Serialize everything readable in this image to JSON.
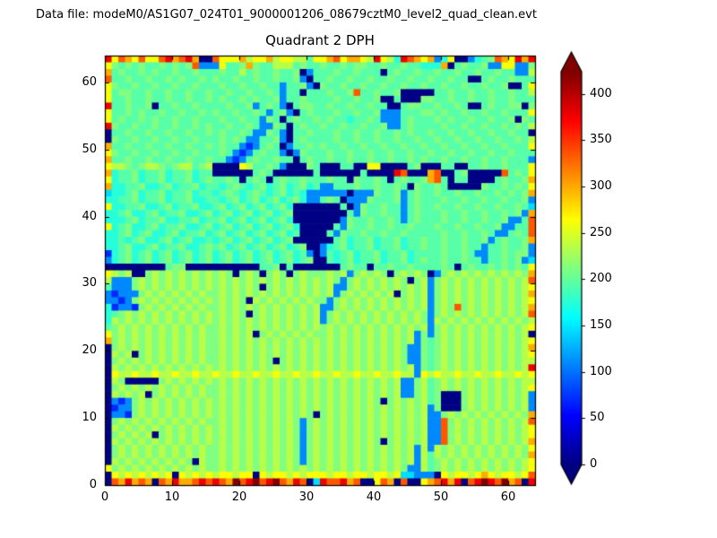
{
  "header": {
    "data_file": "Data file: modeM0/AS1G07_024T01_9000001206_08679cztM0_level2_quad_clean.evt"
  },
  "colors": {
    "background": "#ffffff",
    "axis": "#000000",
    "text": "#000000"
  },
  "chart_data": {
    "type": "heatmap",
    "title": "Quadrant 2 DPH",
    "xlabel": "",
    "ylabel": "",
    "x_range": [
      0,
      64
    ],
    "y_range": [
      0,
      64
    ],
    "x_ticks": [
      0,
      10,
      20,
      30,
      40,
      50,
      60
    ],
    "y_ticks": [
      0,
      10,
      20,
      30,
      40,
      50,
      60
    ],
    "grid_size": 64,
    "colormap": "jet",
    "vmin": 0,
    "vmax": 424,
    "colorbar": {
      "ticks": [
        0,
        50,
        100,
        150,
        200,
        250,
        300,
        350,
        400
      ],
      "extend": "both"
    },
    "value_levels": {
      "0": 2,
      "1": 70,
      "2": 110,
      "3": 145,
      "4": 175,
      "5": 195,
      "6": 212,
      "7": 235,
      "8": 262,
      "9": 300,
      "a": 335,
      "b": 378,
      "c": 424
    },
    "rows_top_to_bottom": [
      [
        "b8a98a88ab9ab900",
        "a888978897887758",
        "89a89987b874ba98",
        "9248002456a98b9b"
      ],
      [
        "8656565565656a22",
        "2855696557775655",
        "6556566556556554",
        "4490565562288226"
      ],
      [
        "9565565655655655",
        "5655756556556025",
        "5565565550565565",
        "5655655655655227"
      ],
      [
        "a556556556565565",
        "6556556556556205",
        "5655655655655655",
        "6556550056556555"
      ],
      [
        "8655655655655655",
        "5655655655255620",
        "6556556556556556",
        "5565565565560058"
      ],
      [
        "8566556556556556",
        "5565565565255055",
        "56556a5565560000",
        "0556556556556557"
      ],
      [
        "8556556556556556",
        "5655656556255655",
        "5565565560050006",
        "6556556556556555"
      ],
      [
        "b556556055655655",
        "5565562565205665",
        "5655655655005665",
        "5655650056556606"
      ],
      [
        "8556565565565565",
        "6556556525620565",
        "5565565562225556",
        "6565565565565558"
      ],
      [
        "8565565655655655",
        "5655655265056556",
        "5655455652225655",
        "5656556556556065"
      ],
      [
        "b655655655655656",
        "5565565226505655",
        "6556556556225655",
        "5565565565565657"
      ],
      [
        "0556556556556556",
        "5655652265205565",
        "5565565565565655",
        "6556556556556550"
      ],
      [
        "0655655655655655",
        "5656522556205655",
        "5565565565565565",
        "5655655655655657"
      ],
      [
        "9556556556556556",
        "5655212565025565",
        "6556556556556556",
        "5565565565565558"
      ],
      [
        "8655655655655655",
        "5652125655202655",
        "5655655655655655",
        "6556556556556555"
      ],
      [
        "9556556556556556",
        "5521256556550565",
        "5655655655655656",
        "5565565565565552"
      ],
      [
        "8776567765677567",
        "0000875565200065",
        "0005500880000560",
        "0055005565565558"
      ],
      [
        "9455645564556455",
        "0000005650000005",
        "00000050000ba000",
        "9a005600000a5658"
      ],
      [
        "8455645564556456",
        "5565056505655655",
        "5655065565056556",
        "9a50550000565569"
      ],
      [
        "9445564456455645",
        "5456545645645645",
        "2255565565565065",
        "5650000065565658"
      ],
      [
        "3445645564556455",
        "4565456545645422",
        "2222022265562565",
        "5655655655656569"
      ],
      [
        "4455645564556445",
        "5456456456456422",
        "5650222655562565",
        "5565565565565562"
      ],
      [
        "8445564456455644",
        "5645645645640000",
        "0005026556552565",
        "5655655655655653"
      ],
      [
        "4456445645564456",
        "4564564564560000",
        "0000526556552565",
        "5565565565565629"
      ],
      [
        "4445645564455645",
        "5645645645640000",
        "0002655655652565",
        "556556556556225a"
      ],
      [
        "8456445645564456",
        "4564564564564000",
        "0052655655655655",
        "565565565562255a"
      ],
      [
        "4456456445645564",
        "5645645645645000",
        "0526556556556555",
        "556556556522565a"
      ],
      [
        "4454564456456445",
        "4564564564560000",
        "0056455645564556",
        "5565565562565569"
      ],
      [
        "4456445645564456",
        "5645645645645600",
        "2456455645564556",
        "5565565525565562"
      ],
      [
        "1456456456456456",
        "4564564564564520",
        "2545645564556455",
        "5565565225565662"
      ],
      [
        "2456456456456456",
        "4564564564564560",
        "0545645564556456",
        "5565565525565623"
      ],
      [
        "0000000005660000",
        "0000000556050000",
        "0005655055655655",
        "5565056556565658"
      ],
      [
        "8767006767676767",
        "6760676067606766",
        "6767267676067676",
        "0267676767676769"
      ],
      [
        "7222676767676767",
        "6767676767676767",
        "6762676767676067",
        "267676767676767a"
      ],
      [
        "5222676767676767",
        "6767676067676767",
        "6722676767676767",
        "2676767676767678"
      ],
      [
        "2122267676767676",
        "6767676767676767",
        "6726767676706767",
        "2676767676767679"
      ],
      [
        "2212676767676767",
        "6767607676767676",
        "6267676767676767",
        "2676767676767678"
      ],
      [
        "4122167676767676",
        "6767676767676767",
        "2267676767676767",
        "2676a67676767679"
      ],
      [
        "4567676767676767",
        "6767606767676767",
        "2676767676767676",
        "267676767676767a"
      ],
      [
        "4767676767676767",
        "6767676767676767",
        "2676767676767676",
        "2767676767676767"
      ],
      [
        "5676767676767676",
        "6767676767676767",
        "6767676767676767",
        "2676767676767678"
      ],
      [
        "8676767676767676",
        "6767670676767676",
        "6767676767676726",
        "2676767676767670"
      ],
      [
        "9676767676767676",
        "6767676767676767",
        "6767676767676726",
        "5676767676767678"
      ],
      [
        "0676767676767676",
        "6767676767676767",
        "6767676767676226",
        "5676767676767679"
      ],
      [
        "0767067676767676",
        "6767676767676767",
        "6767676767676226",
        "5676767676767678"
      ],
      [
        "0676767676767676",
        "6767676760676767",
        "6767676767676226",
        "5676767676767677"
      ],
      [
        "0767676767676767",
        "6767676767676767",
        "6767676767676726",
        "567676767676767b"
      ],
      [
        "0877877877877877",
        "8778778778778778",
        "7787787787787728",
        "7877877877877878"
      ],
      [
        "0760000067676767",
        "6767676767676767",
        "6767676767672267",
        "5676767676767677"
      ],
      [
        "0676767676767676",
        "6767676767676767",
        "6767676767672267",
        "5676767676767678"
      ],
      [
        "0767670676767676",
        "6767676767676767",
        "6767676767672267",
        "5600067676767672"
      ],
      [
        "0212676767676767",
        "6767676767676767",
        "6767676760676767",
        "5600067676767672"
      ],
      [
        "0122676767676767",
        "6767676767676767",
        "6767676767676767",
        "2600067676767672"
      ],
      [
        "0221676767676767",
        "6767676767676760",
        "6767676767676767",
        "2267676767676769"
      ],
      [
        "0676767676767676",
        "6767676767676267",
        "6767676767676767",
        "22a676767676767a"
      ],
      [
        "0767676767676767",
        "6767676767676267",
        "6767676767676767",
        "22a6767676767678"
      ],
      [
        "0676767067676767",
        "6767676767676267",
        "6767676767676767",
        "22a6767676767678"
      ],
      [
        "0767676767676767",
        "6767676767676267",
        "6767676760676767",
        "22a6767676767679"
      ],
      [
        "0676767676767676",
        "6767676767676267",
        "6767676767676727",
        "2767676767676768"
      ],
      [
        "0676767676767676",
        "6767676767676267",
        "6767676767676727",
        "5767676767676769"
      ],
      [
        "0767676767676076",
        "6767676767676267",
        "6767676767676727",
        "5676767676767678"
      ],
      [
        "8676767676767676",
        "6767676767676767",
        "6767676767676227",
        "5676767676767678"
      ],
      [
        "0878787878087878",
        "7887880878878788",
        "8788788788783322",
        "208788789878878a"
      ],
      [
        "0a9b9a90a9b99aba",
        "ba9cabcabca9ba03",
        "baab9a008a90a008",
        "9ab9b0abcbac9a0b"
      ]
    ]
  }
}
